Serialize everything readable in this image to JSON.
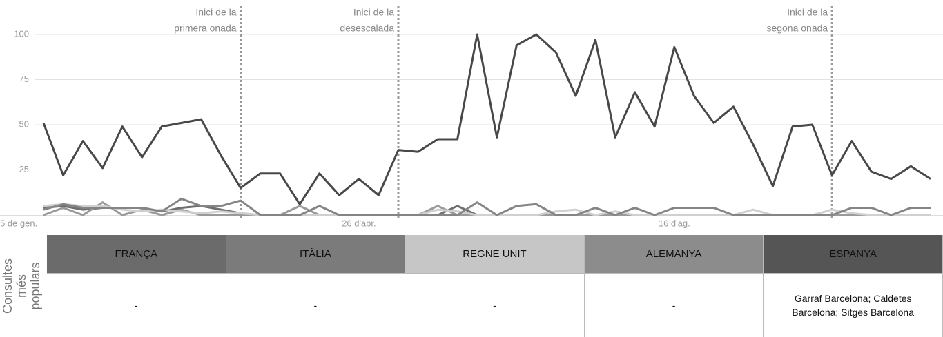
{
  "chart_data": {
    "type": "line",
    "categories": [
      "5 de gen.",
      null,
      null,
      null,
      null,
      null,
      null,
      null,
      null,
      null,
      null,
      null,
      null,
      null,
      null,
      null,
      "26 d'abr.",
      null,
      null,
      null,
      null,
      null,
      null,
      null,
      null,
      null,
      null,
      null,
      null,
      null,
      null,
      null,
      "16 d'ag.",
      null,
      null,
      null,
      null,
      null,
      null,
      null,
      null,
      null,
      null,
      null,
      null,
      null
    ],
    "ylim": [
      0,
      100
    ],
    "yticks": [
      25,
      50,
      75,
      100
    ],
    "grid": true,
    "series": [
      {
        "name": "FRANÇA",
        "color": "#6f6f6f",
        "values": [
          4,
          5,
          3,
          4,
          4,
          4,
          2,
          4,
          5,
          3,
          1,
          0,
          0,
          0,
          0,
          0,
          0,
          0,
          0,
          0,
          0,
          5,
          0,
          0,
          0,
          0,
          0,
          0,
          0,
          0,
          0,
          0,
          0,
          0,
          0,
          0,
          0,
          0,
          0,
          0,
          0,
          0,
          0,
          0,
          0,
          0
        ]
      },
      {
        "name": "ITÀLIA",
        "color": "#9a9a9a",
        "values": [
          0,
          4,
          0,
          7,
          0,
          3,
          0,
          3,
          0,
          0,
          0,
          0,
          0,
          5,
          0,
          0,
          0,
          0,
          0,
          0,
          5,
          0,
          0,
          0,
          0,
          0,
          0,
          0,
          0,
          0,
          0,
          0,
          0,
          0,
          0,
          0,
          0,
          0,
          0,
          0,
          0,
          0,
          0,
          0,
          0,
          0
        ]
      },
      {
        "name": "REGNE UNIT",
        "color": "#d0d0d0",
        "values": [
          5,
          6,
          5,
          5,
          3,
          2,
          3,
          2,
          1,
          2,
          1,
          0,
          0,
          0,
          0,
          0,
          0,
          0,
          0,
          0,
          3,
          2,
          0,
          0,
          0,
          0,
          2,
          3,
          0,
          2,
          0,
          0,
          0,
          0,
          0,
          0,
          3,
          0,
          0,
          0,
          3,
          1,
          0,
          0,
          0,
          0
        ]
      },
      {
        "name": "ALEMANYA",
        "color": "#858585",
        "values": [
          3,
          6,
          4,
          4,
          4,
          4,
          2,
          9,
          5,
          5,
          8,
          0,
          0,
          0,
          5,
          0,
          0,
          0,
          0,
          0,
          0,
          0,
          7,
          0,
          5,
          6,
          0,
          0,
          4,
          0,
          4,
          0,
          4,
          4,
          4,
          0,
          0,
          0,
          0,
          0,
          0,
          4,
          4,
          0,
          4,
          4
        ]
      },
      {
        "name": "ESPANYA",
        "color": "#484848",
        "values": [
          51,
          22,
          41,
          26,
          49,
          32,
          49,
          51,
          53,
          33,
          15,
          23,
          23,
          6,
          23,
          11,
          20,
          11,
          36,
          35,
          42,
          42,
          100,
          43,
          94,
          100,
          90,
          66,
          97,
          43,
          68,
          49,
          93,
          66,
          51,
          60,
          39,
          16,
          49,
          50,
          22,
          41,
          24,
          20,
          27,
          20
        ]
      }
    ],
    "annotations": [
      {
        "at": 10,
        "lines": [
          "Inici  de la",
          "primera onada"
        ]
      },
      {
        "at": 18,
        "lines": [
          "Inici  de la",
          "desescalada"
        ]
      },
      {
        "at": 40,
        "lines": [
          "Inici  de la",
          "segona onada"
        ]
      }
    ]
  },
  "table": {
    "row_label": "Consultes més populars",
    "headers": [
      "FRANÇA",
      "ITÀLIA",
      "REGNE UNIT",
      "ALEMANYA",
      "ESPANYA"
    ],
    "header_colors": [
      "#6b6b6b",
      "#7b7b7b",
      "#c6c6c6",
      "#8c8c8c",
      "#555555"
    ],
    "rows": [
      [
        "-",
        "-",
        "-",
        "-",
        "Garraf Barcelona; Caldetes Barcelona; Sitges Barcelona"
      ]
    ]
  }
}
